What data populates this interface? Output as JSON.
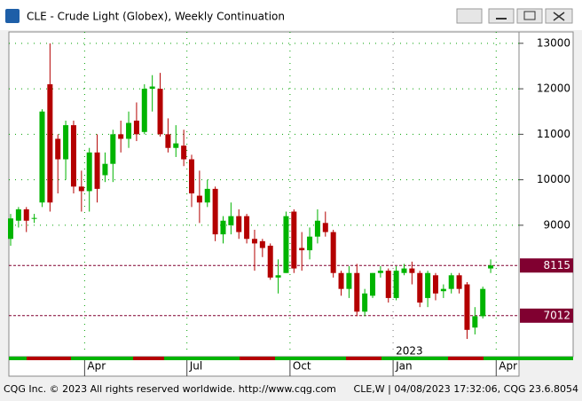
{
  "window_title": "CLE - Crude Light (Globex), Weekly Continuation",
  "chart_data": {
    "type": "candlestick",
    "open": [
      8700,
      9100,
      9350,
      9150,
      9500,
      12100,
      10900,
      10450,
      11200,
      9850,
      9750,
      10600,
      10100,
      10350,
      11000,
      10900,
      11300,
      11050,
      12000,
      12000,
      11000,
      10700,
      10750,
      10450,
      9650,
      9500,
      9800,
      8800,
      9000,
      9200,
      9200,
      8700,
      8650,
      8550,
      7850,
      7950,
      9300,
      8500,
      8450,
      8750,
      9050,
      8850,
      7950,
      7600,
      7950,
      7100,
      7450,
      7950,
      8000,
      7400,
      7950,
      8050,
      7950,
      7400,
      7900,
      7550,
      7600,
      7900,
      7700,
      6750,
      7000,
      8050
    ],
    "high": [
      9250,
      9400,
      9400,
      9250,
      11550,
      13000,
      11000,
      11300,
      11300,
      10200,
      10700,
      11000,
      10600,
      11100,
      11300,
      11500,
      11700,
      12100,
      12300,
      12350,
      11350,
      11200,
      11100,
      10550,
      10200,
      10000,
      9850,
      9200,
      9500,
      9350,
      9250,
      8900,
      8700,
      8600,
      8250,
      9300,
      9350,
      8850,
      8950,
      9350,
      9300,
      8900,
      8000,
      8100,
      8150,
      7600,
      7950,
      8100,
      8050,
      8100,
      8150,
      8200,
      8000,
      8000,
      7950,
      7700,
      7950,
      7950,
      7750,
      7200,
      7650,
      8250
    ],
    "low": [
      8550,
      8950,
      8850,
      9050,
      9400,
      9300,
      9700,
      10000,
      9700,
      9300,
      9300,
      9500,
      9950,
      9950,
      10600,
      10700,
      10850,
      11000,
      11500,
      10950,
      10600,
      10500,
      10300,
      9400,
      9050,
      9400,
      8650,
      8600,
      8800,
      8700,
      8600,
      8000,
      8300,
      7800,
      7500,
      7950,
      7950,
      8000,
      8250,
      8600,
      8750,
      7850,
      7450,
      7400,
      7000,
      7000,
      7400,
      7850,
      7300,
      7350,
      7900,
      7700,
      7200,
      7200,
      7350,
      7400,
      7500,
      7500,
      6500,
      6600,
      6950,
      7950
    ],
    "close": [
      9150,
      9350,
      9100,
      9160,
      11500,
      9500,
      10450,
      11200,
      9850,
      9750,
      10600,
      9800,
      10350,
      11000,
      10900,
      11250,
      11000,
      12000,
      12050,
      11000,
      10700,
      10800,
      10450,
      9700,
      9500,
      9800,
      8800,
      9100,
      9200,
      8850,
      8700,
      8600,
      8500,
      7850,
      7900,
      9200,
      8050,
      8450,
      8750,
      9100,
      8850,
      7950,
      7600,
      7950,
      7100,
      7500,
      7950,
      8000,
      7400,
      8000,
      8050,
      7950,
      7300,
      7950,
      7500,
      7600,
      7900,
      7600,
      6700,
      7000,
      7600,
      8115
    ],
    "up_color": "#00b400",
    "down_color": "#b40000",
    "ylim": [
      6150,
      13250
    ],
    "yticks": [
      9000,
      10000,
      11000,
      12000,
      13000
    ],
    "grid": true,
    "x_labels": [
      "Apr",
      "Jul",
      "Oct",
      "Jan",
      "Apr"
    ],
    "year_label": "2023",
    "price_lines": [
      {
        "value": 8115
      },
      {
        "value": 7012
      }
    ],
    "price_line_color": "#800030"
  },
  "footer": {
    "left": "CQG Inc. © 2023 All rights reserved worldwide. http://www.cqg.com",
    "right": "CLE,W | 04/08/2023 17:32:06, CQG 23.6.8054"
  }
}
